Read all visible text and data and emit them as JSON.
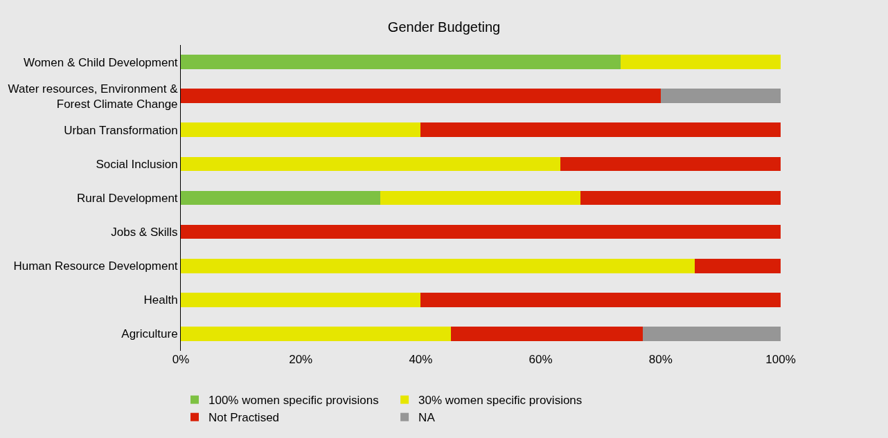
{
  "chart_data": {
    "type": "bar",
    "orientation": "horizontal",
    "stacked": true,
    "title": "Gender Budgeting",
    "categories": [
      "Women & Child Development",
      "Water resources, Environment &\nForest Climate Change",
      "Urban Transformation",
      "Social Inclusion",
      "Rural Development",
      "Jobs & Skills",
      "Human Resource Development",
      "Health",
      "Agriculture"
    ],
    "series": [
      {
        "name": "100% women specific provisions",
        "color": "#7dc142",
        "values": [
          73.3,
          0,
          0,
          0,
          33.3,
          0,
          0,
          0,
          0
        ]
      },
      {
        "name": "30% women specific provisions",
        "color": "#e6e600",
        "values": [
          26.7,
          0,
          40,
          63.3,
          33.3,
          0,
          85.7,
          40,
          45
        ]
      },
      {
        "name": "Not Practised",
        "color": "#d81e05",
        "values": [
          0,
          80,
          60,
          36.7,
          33.4,
          100,
          14.3,
          60,
          32
        ]
      },
      {
        "name": "NA",
        "color": "#969696",
        "values": [
          0,
          20,
          0,
          0,
          0,
          0,
          0,
          0,
          23
        ]
      }
    ],
    "xlim": [
      0,
      100
    ],
    "xticks": [
      {
        "value": 0,
        "label": "0%"
      },
      {
        "value": 20,
        "label": "20%"
      },
      {
        "value": 40,
        "label": "40%"
      },
      {
        "value": 60,
        "label": "60%"
      },
      {
        "value": 80,
        "label": "80%"
      },
      {
        "value": 100,
        "label": "100%"
      }
    ],
    "grid": false,
    "legend": "bottom"
  }
}
